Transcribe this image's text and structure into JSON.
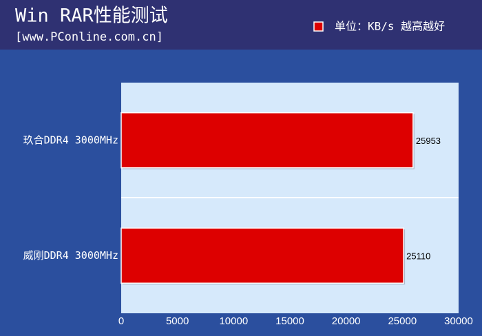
{
  "chart_data": {
    "type": "hbar",
    "title": "Win RAR性能测试",
    "subtitle": "[www.PConline.com.cn]",
    "categories": [
      "玖合DDR4 3000MHz",
      "威刚DDR4 3000MHz"
    ],
    "series": [
      {
        "name": "单位：KB/s 越高越好",
        "color": "#dd0000",
        "values": [
          25953,
          25110
        ]
      }
    ],
    "xlim": [
      0,
      30000
    ],
    "xticks": [
      0,
      5000,
      10000,
      15000,
      20000,
      25000,
      30000
    ],
    "grid": false
  }
}
